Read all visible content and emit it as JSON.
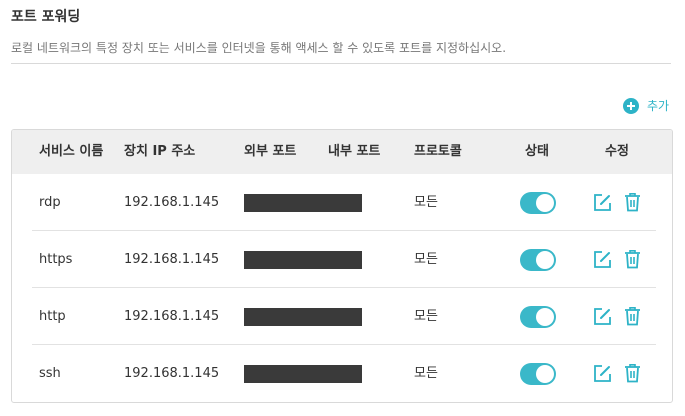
{
  "page": {
    "title": "포트 포워딩",
    "description": "로컬 네트워크의 특정 장치 또는 서비스를 인터넷을 통해 액세스 할 수 있도록 포트를 지정하십시오."
  },
  "add_button": {
    "label": "추가",
    "icon": "plus-circle-icon"
  },
  "table": {
    "headers": {
      "service": "서비스 이름",
      "device_ip": "장치 IP 주소",
      "external_port": "외부 포트",
      "internal_port": "내부 포트",
      "protocol": "프로토콜",
      "status": "상태",
      "edit": "수정"
    },
    "rows": [
      {
        "service": "rdp",
        "device_ip": "192.168.1.145",
        "protocol": "모든",
        "enabled": true
      },
      {
        "service": "https",
        "device_ip": "192.168.1.145",
        "protocol": "모든",
        "enabled": true
      },
      {
        "service": "http",
        "device_ip": "192.168.1.145",
        "protocol": "모든",
        "enabled": true
      },
      {
        "service": "ssh",
        "device_ip": "192.168.1.145",
        "protocol": "모든",
        "enabled": true
      }
    ]
  },
  "colors": {
    "accent": "#2db3c7",
    "toggle_on": "#3ab8c9",
    "header_bg": "#efefef",
    "redaction": "#3a3a3a"
  }
}
